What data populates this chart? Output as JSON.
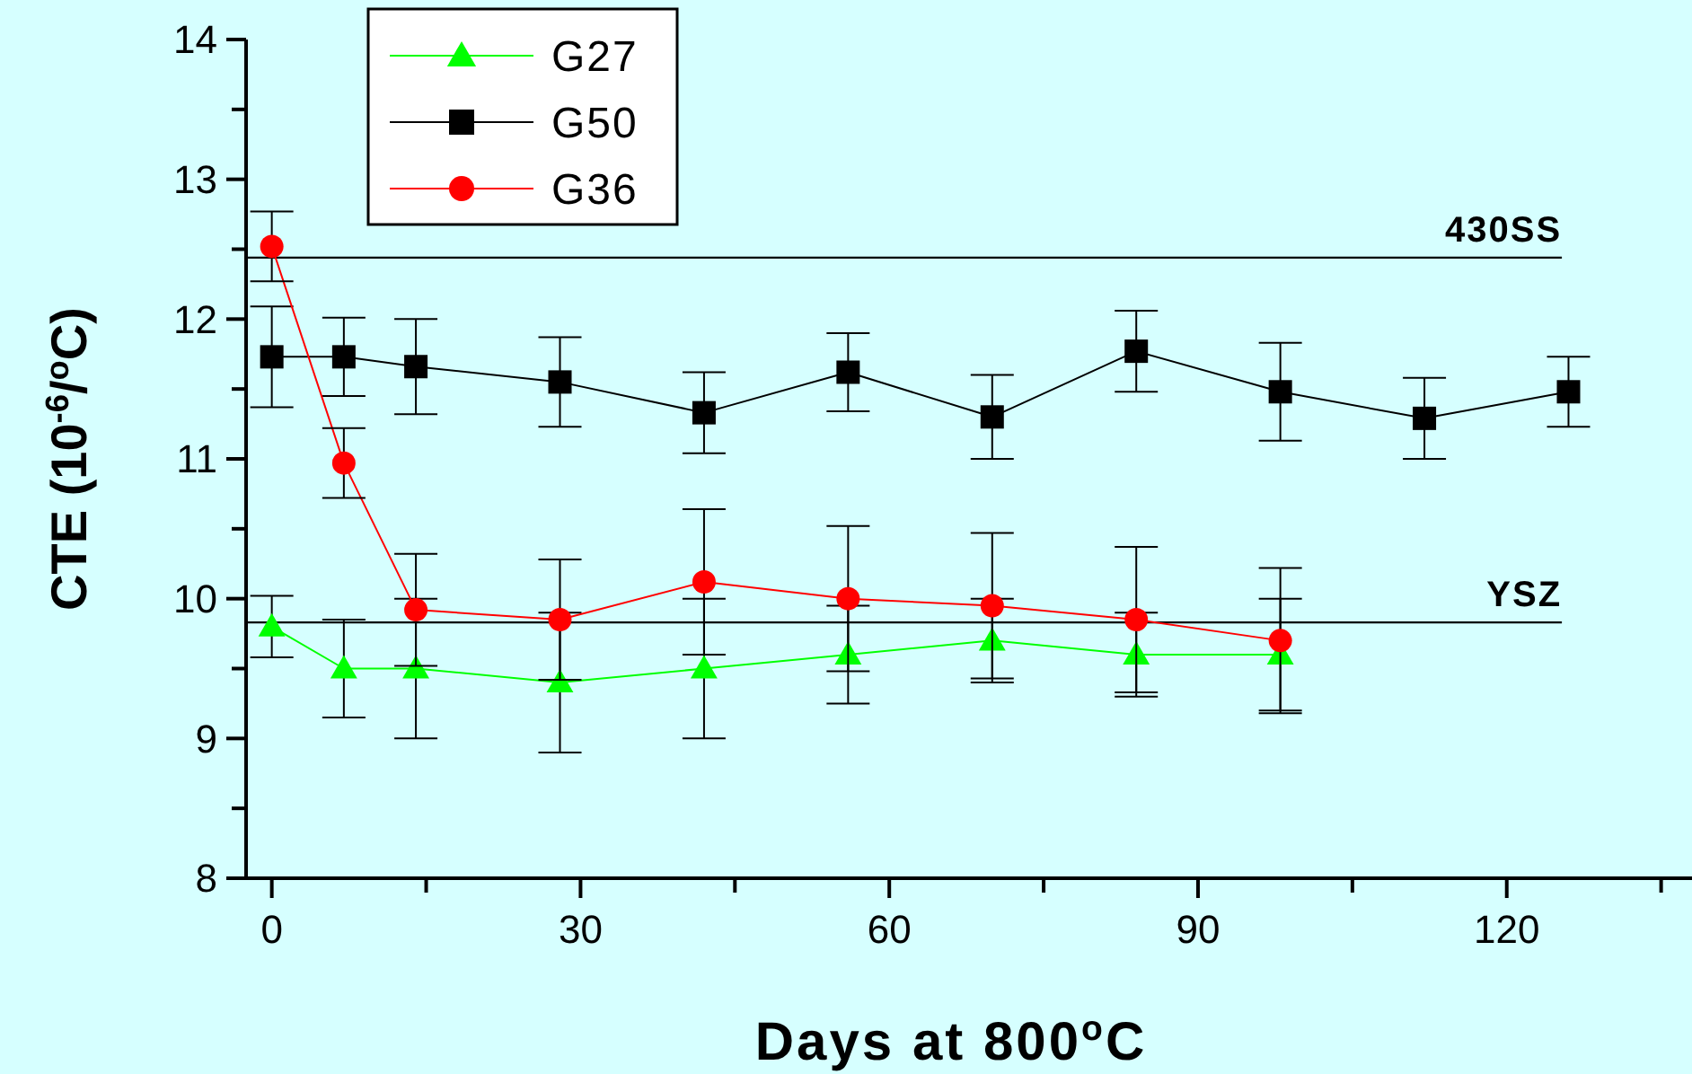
{
  "chart_data": {
    "type": "line",
    "xlabel": "Days at 800$^{o}$C",
    "ylabel": "CTE (10$^{-6}$/$^{o}$C)",
    "x": [
      0,
      7,
      14,
      28,
      42,
      56,
      70,
      84,
      98,
      112,
      126
    ],
    "xlim": [
      -2.5,
      138
    ],
    "xticks": [
      0,
      {
        "value": 15,
        "label": null
      },
      30,
      {
        "value": 45,
        "label": null
      },
      60,
      {
        "value": 75,
        "label": null
      },
      90,
      {
        "value": 105,
        "label": null
      },
      120,
      {
        "value": 135,
        "label": null
      }
    ],
    "ylim": [
      8,
      14
    ],
    "yticks": [
      8,
      {
        "value": 8.5,
        "label": null
      },
      9,
      {
        "value": 9.5,
        "label": null
      },
      10,
      {
        "value": 10.5,
        "label": null
      },
      11,
      {
        "value": 11.5,
        "label": null
      },
      12,
      {
        "value": 12.5,
        "label": null
      },
      13,
      {
        "value": 13.5,
        "label": null
      },
      14
    ],
    "legend": "top left",
    "grid": false,
    "series": [
      {
        "name": "G27",
        "color": "#00ff00",
        "marker": "triangle",
        "x": [
          0,
          7,
          14,
          28,
          42,
          56,
          70,
          84,
          98
        ],
        "values": [
          9.8,
          9.5,
          9.5,
          9.4,
          9.5,
          9.6,
          9.7,
          9.6,
          9.6
        ],
        "errors": [
          0.22,
          0.35,
          0.5,
          0.5,
          0.5,
          0.35,
          0.3,
          0.3,
          0.4
        ]
      },
      {
        "name": "G50",
        "color": "#000000",
        "marker": "square",
        "values": [
          11.73,
          11.73,
          11.66,
          11.55,
          11.33,
          11.62,
          11.3,
          11.77,
          11.48,
          11.29,
          11.48
        ],
        "errors": [
          0.36,
          0.28,
          0.34,
          0.32,
          0.29,
          0.28,
          0.3,
          0.29,
          0.35,
          0.29,
          0.25
        ]
      },
      {
        "name": "G36",
        "color": "#ff0000",
        "marker": "circle",
        "x": [
          0,
          7,
          14,
          28,
          42,
          56,
          70,
          84,
          98
        ],
        "values": [
          12.52,
          10.97,
          9.92,
          9.85,
          10.12,
          10.0,
          9.95,
          9.85,
          9.7
        ],
        "errors": [
          0.25,
          0.25,
          0.4,
          0.43,
          0.52,
          0.52,
          0.52,
          0.52,
          0.52
        ]
      }
    ],
    "ref_lines": [
      {
        "axis": "y",
        "value": 12.44,
        "label": "430SS",
        "color": "#000000"
      },
      {
        "axis": "y",
        "value": 9.83,
        "label": "YSZ",
        "color": "#000000"
      }
    ]
  }
}
